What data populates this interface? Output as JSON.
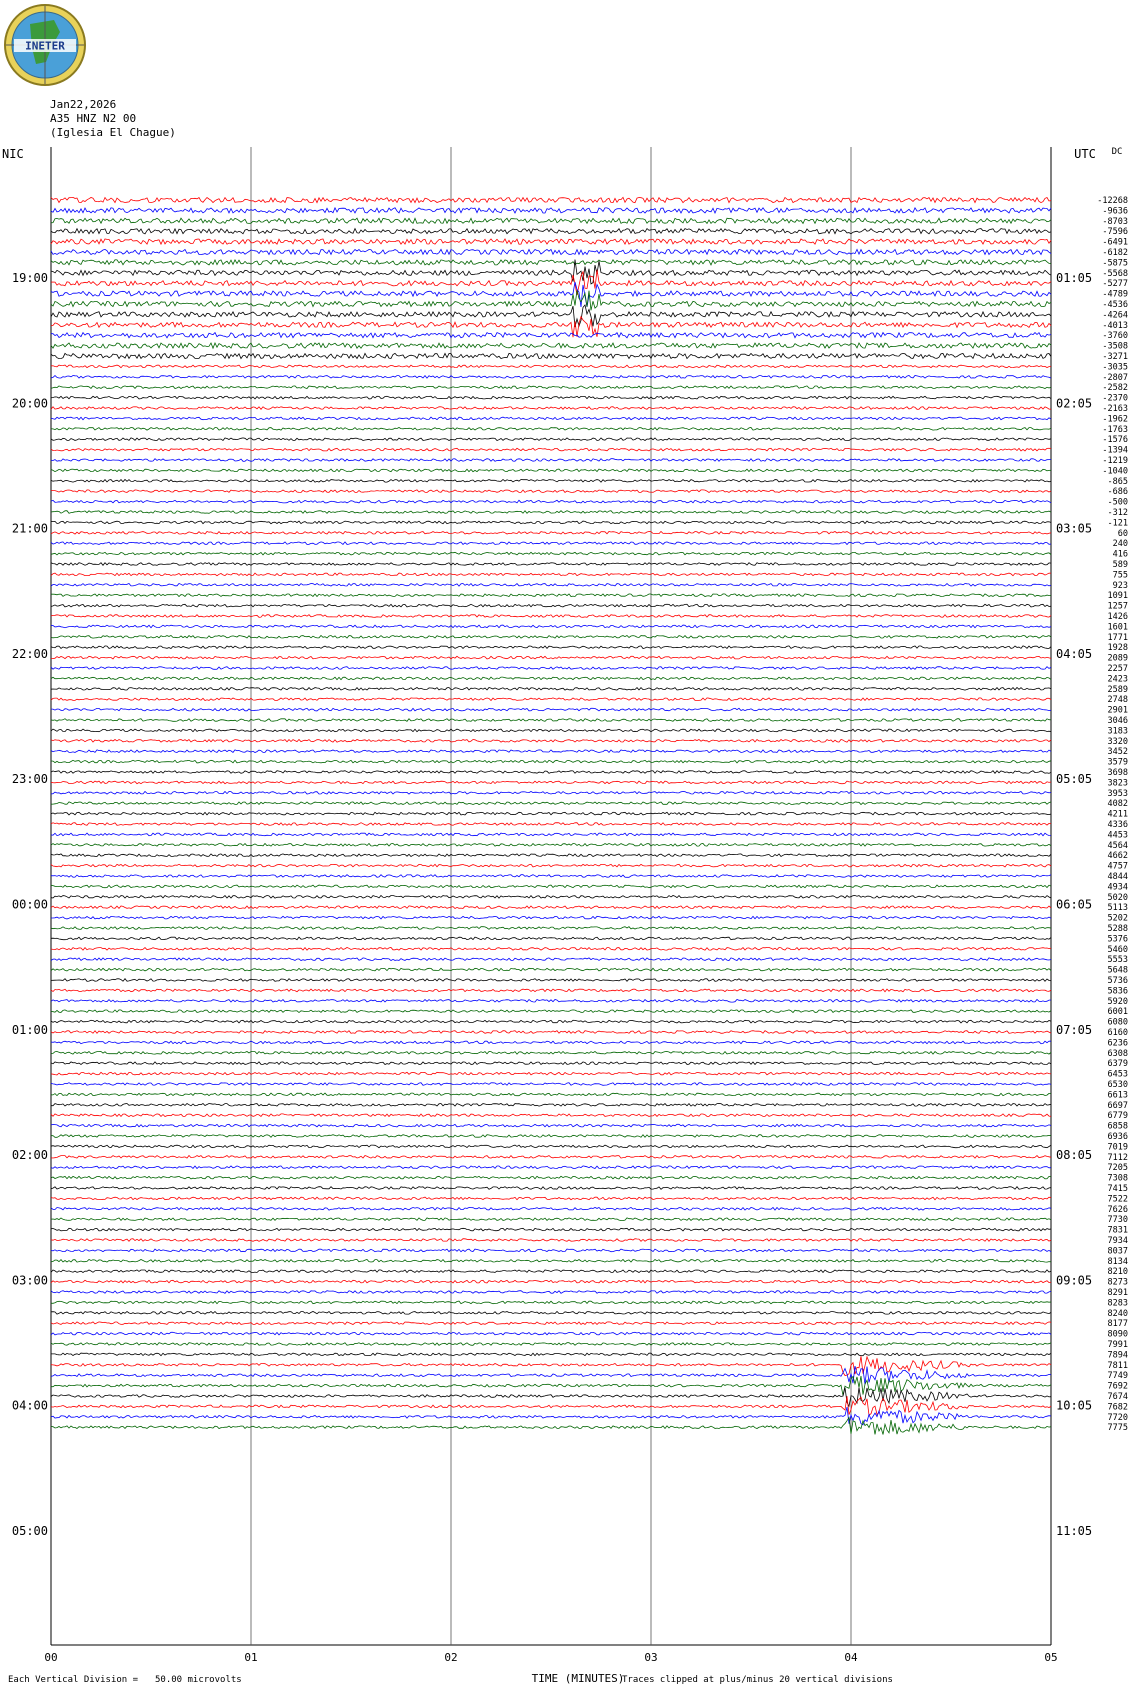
{
  "header": {
    "date": "Jan22,2026",
    "station": "A35 HNZ N2 00",
    "location": "(Iglesia El Chague)"
  },
  "logo": {
    "text": "INETER"
  },
  "colors": {
    "trace_cycle": [
      "#ff0000",
      "#0000ff",
      "#006400",
      "#000000"
    ],
    "grid": "#000000"
  },
  "chart_data": {
    "type": "line",
    "left_axis_label": "NIC",
    "right_axis_label": "UTC",
    "dc_label": "DC",
    "xlabel": "TIME (MINUTES)",
    "x_ticks": [
      "00",
      "01",
      "02",
      "03",
      "04",
      "05"
    ],
    "xlim": [
      0,
      5
    ],
    "left_time_labels": [
      "19:00",
      "20:00",
      "21:00",
      "22:00",
      "23:00",
      "00:00",
      "01:00",
      "02:00",
      "03:00",
      "04:00",
      "05:00"
    ],
    "right_time_labels": [
      "01:05",
      "02:05",
      "03:05",
      "04:05",
      "05:05",
      "06:05",
      "07:05",
      "08:05",
      "09:05",
      "10:05",
      "11:05"
    ],
    "dc_offsets": [
      "-12268",
      "-9636",
      "-8703",
      "-7596",
      "-6491",
      "-6182",
      "-5875",
      "-5568",
      "-5277",
      "-4789",
      "-4536",
      "-4264",
      "-4013",
      "-3760",
      "-3508",
      "-3271",
      "-3035",
      "-2807",
      "-2582",
      "-2370",
      "-2163",
      "-1962",
      "-1763",
      "-1576",
      "-1394",
      "-1219",
      "-1040",
      "-865",
      "-686",
      "-500",
      "-312",
      "-121",
      "60",
      "240",
      "416",
      "589",
      "755",
      "923",
      "1091",
      "1257",
      "1426",
      "1601",
      "1771",
      "1928",
      "2089",
      "2257",
      "2423",
      "2589",
      "2748",
      "2901",
      "3046",
      "3183",
      "3320",
      "3452",
      "3579",
      "3698",
      "3823",
      "3953",
      "4082",
      "4211",
      "4336",
      "4453",
      "4564",
      "4662",
      "4757",
      "4844",
      "4934",
      "5020",
      "5113",
      "5202",
      "5288",
      "5376",
      "5460",
      "5553",
      "5648",
      "5736",
      "5836",
      "5920",
      "6001",
      "6080",
      "6160",
      "6236",
      "6308",
      "6379",
      "6453",
      "6530",
      "6613",
      "6697",
      "6779",
      "6858",
      "6936",
      "7019",
      "7112",
      "7205",
      "7308",
      "7415",
      "7522",
      "7626",
      "7730",
      "7831",
      "7934",
      "8037",
      "8134",
      "8210",
      "8273",
      "8291",
      "8283",
      "8240",
      "8177",
      "8090",
      "7991",
      "7894",
      "7811",
      "7749",
      "7692",
      "7674",
      "7682",
      "7720",
      "7775"
    ],
    "scale_note": "Each Vertical Division =",
    "scale_value": "50.00 microvolts",
    "clip_note": "Traces clipped at plus/minus 20 vertical divisions"
  }
}
